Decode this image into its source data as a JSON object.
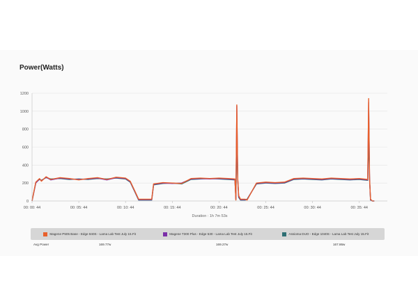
{
  "chart_data": {
    "type": "line",
    "title": "Power(Watts)",
    "xlabel": "Duration : 1h 7m 53s",
    "ylabel": "",
    "ylim": [
      0,
      1200
    ],
    "yticks": [
      0,
      200,
      400,
      600,
      800,
      1000,
      1200
    ],
    "xlim_min": [
      0,
      38
    ],
    "xticks": [
      {
        "min": 0,
        "label": "00: 00: 44"
      },
      {
        "min": 5,
        "label": "00: 05: 44"
      },
      {
        "min": 10,
        "label": "00: 10: 44"
      },
      {
        "min": 15,
        "label": "00: 15: 44"
      },
      {
        "min": 20,
        "label": "00: 20: 44"
      },
      {
        "min": 25,
        "label": "00: 25: 44"
      },
      {
        "min": 30,
        "label": "00: 30: 44"
      },
      {
        "min": 35,
        "label": "00: 35: 44"
      }
    ],
    "grid": "horizontal",
    "x": [
      0,
      0.4,
      0.8,
      1.0,
      1.5,
      2,
      3,
      4,
      5,
      6,
      7,
      8,
      9,
      10,
      10.5,
      11,
      11.4,
      12,
      12.8,
      13,
      14,
      15,
      16,
      17,
      18,
      19,
      20,
      21,
      21.7,
      21.8,
      21.9,
      22.0,
      22.1,
      22.3,
      22.8,
      23,
      24,
      25,
      26,
      27,
      28,
      29,
      30,
      31,
      32,
      33,
      34,
      35,
      35.9,
      36.0,
      36.1,
      36.2,
      36.4,
      36.6
    ],
    "series": [
      {
        "name": "Magene P505 Base - Edge 840S - Lama Lab Test July 15.Fit",
        "color": "#e8602c",
        "values": [
          0,
          210,
          250,
          220,
          270,
          240,
          260,
          250,
          235,
          250,
          260,
          240,
          265,
          255,
          220,
          110,
          20,
          20,
          20,
          190,
          205,
          200,
          195,
          250,
          255,
          250,
          255,
          250,
          245,
          10,
          1070,
          250,
          60,
          20,
          20,
          10,
          200,
          210,
          205,
          210,
          250,
          255,
          250,
          245,
          255,
          250,
          245,
          250,
          240,
          1140,
          250,
          20,
          0,
          0
        ]
      },
      {
        "name": "Magene T300 Plus - Edge 530 - Lama Lab Test July 15.Fit",
        "color": "#7b2fa8",
        "values": [
          0,
          200,
          245,
          225,
          265,
          235,
          255,
          245,
          240,
          245,
          255,
          235,
          260,
          250,
          215,
          105,
          15,
          15,
          15,
          185,
          200,
          195,
          200,
          245,
          250,
          245,
          250,
          245,
          240,
          15,
          1060,
          240,
          50,
          15,
          15,
          15,
          195,
          205,
          200,
          205,
          245,
          250,
          245,
          240,
          250,
          245,
          240,
          245,
          235,
          1100,
          245,
          15,
          0,
          0
        ]
      },
      {
        "name": "Assioma DUO - Edge 1040S - Lama Lab Test July 15.Fit",
        "color": "#2e6f74",
        "values": [
          0,
          205,
          240,
          230,
          260,
          245,
          250,
          240,
          245,
          240,
          250,
          245,
          255,
          245,
          210,
          100,
          10,
          10,
          10,
          180,
          195,
          200,
          190,
          240,
          245,
          250,
          245,
          240,
          235,
          20,
          640,
          235,
          40,
          10,
          10,
          20,
          190,
          200,
          195,
          200,
          240,
          245,
          240,
          235,
          245,
          240,
          235,
          240,
          230,
          720,
          240,
          10,
          0,
          0
        ]
      }
    ],
    "avg_label": "Avg Power",
    "averages": [
      "169.77w",
      "169.27w",
      "167.86w"
    ]
  },
  "legend": [
    {
      "label": "Magene P505 Base - Edge 840S - Lama Lab Test July 15.Fit",
      "color": "#e8602c"
    },
    {
      "label": "Magene T300 Plus - Edge 530 - Lama Lab Test July 15.Fit",
      "color": "#7b2fa8"
    },
    {
      "label": "Assioma DUO - Edge 1040S - Lama Lab Test July 15.Fit",
      "color": "#2e6f74"
    }
  ]
}
